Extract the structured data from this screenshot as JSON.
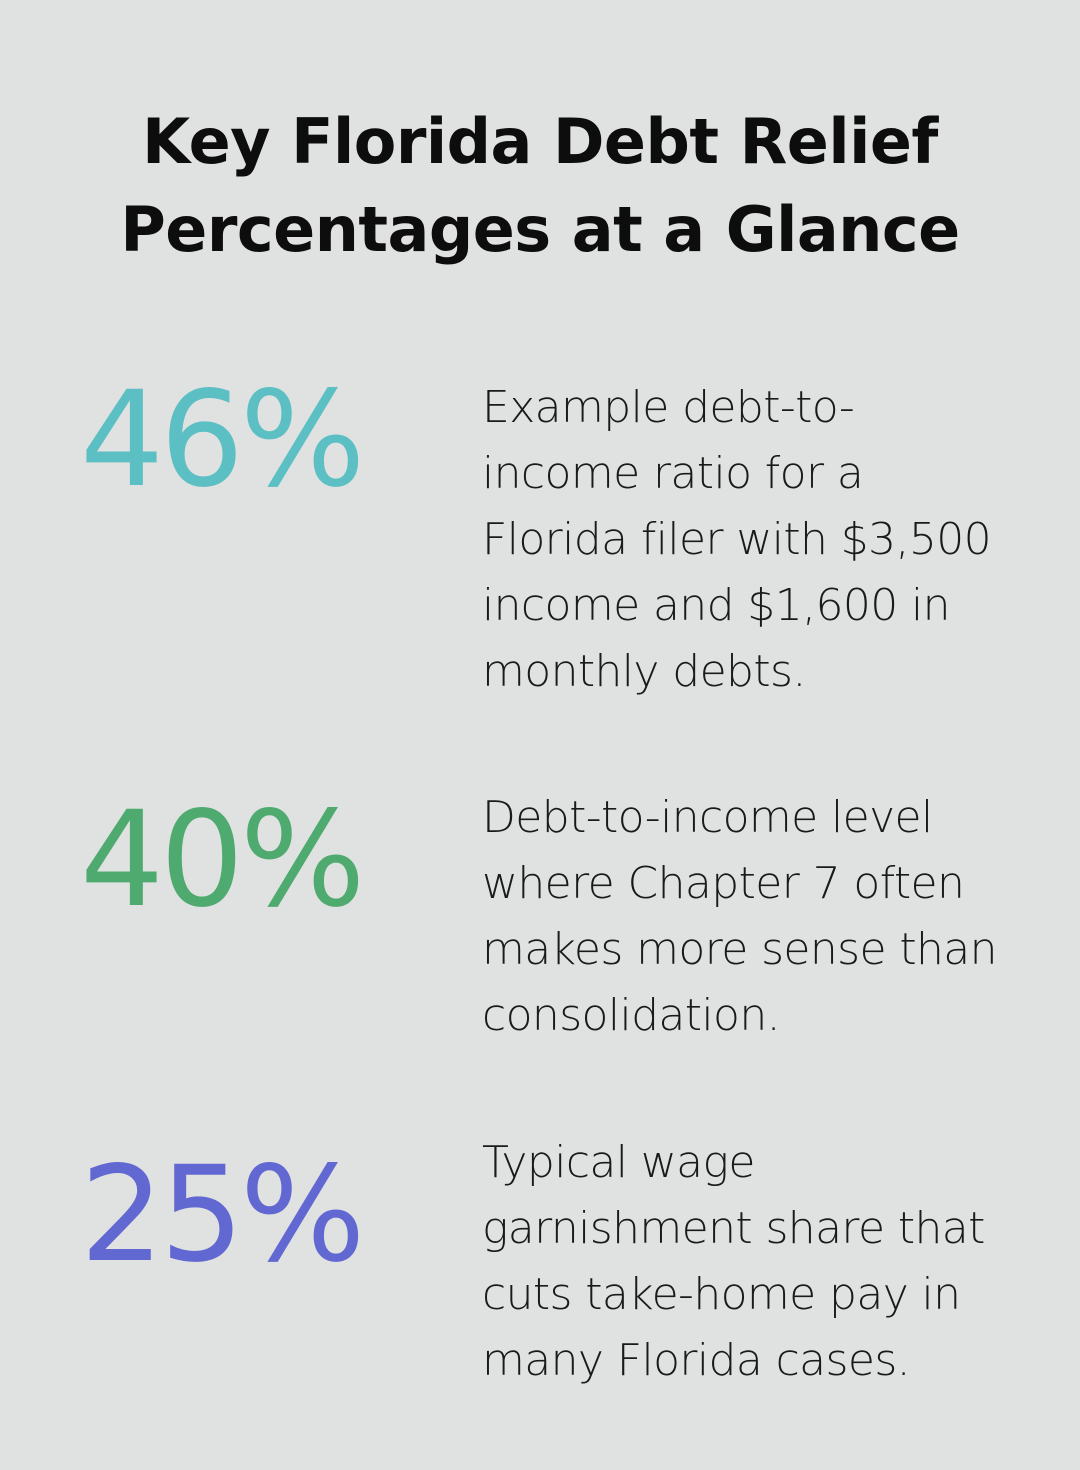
{
  "title": {
    "line1": "Key Florida Debt Relief",
    "line2": "Percentages at a Glance"
  },
  "colors": {
    "background": "#e0e1e1",
    "stat1": "#5bbfc3",
    "stat2": "#4eaa6f",
    "stat3": "#6268d1"
  },
  "stats": [
    {
      "value": "46%",
      "lines": [
        "Example debt-to-",
        "income ratio for a",
        "Florida filer with $3,500",
        "income and $1,600 in",
        "monthly debts."
      ]
    },
    {
      "value": "40%",
      "lines": [
        "Debt-to-income level",
        "where Chapter 7 often",
        "makes more sense than",
        "consolidation."
      ]
    },
    {
      "value": "25%",
      "lines": [
        "Typical wage",
        "garnishment share that",
        "cuts take-home pay in",
        "many Florida cases."
      ]
    }
  ]
}
